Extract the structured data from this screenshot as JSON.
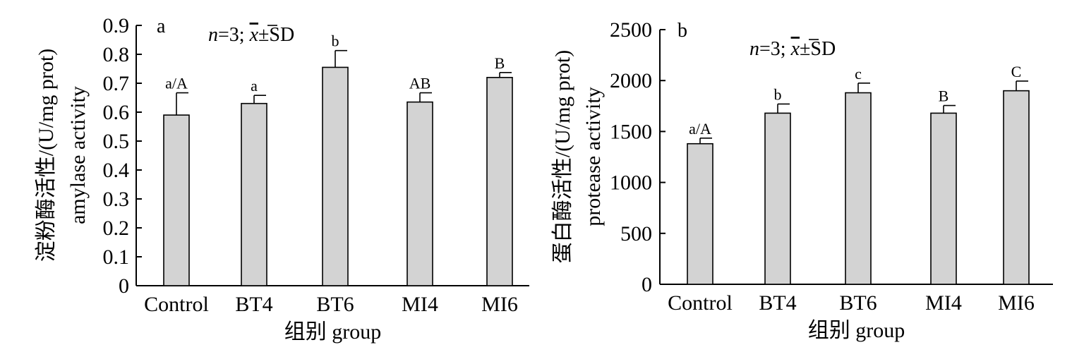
{
  "chart_data": [
    {
      "type": "bar",
      "panel_label": "a",
      "annotation": {
        "n_symbol": "n",
        "n_text": "=3; ",
        "mean_symbol": "x",
        "sd_text": "±SD"
      },
      "ylabel_lines": [
        "淀粉酶活性/(U/mg prot)",
        "amylase activity"
      ],
      "xlabel": "组别 group",
      "ylim": [
        0,
        0.9
      ],
      "yticks": [
        {
          "value": 0,
          "label": "0"
        },
        {
          "value": 0.1,
          "label": "0.1"
        },
        {
          "value": 0.2,
          "label": "0.2"
        },
        {
          "value": 0.3,
          "label": "0.3"
        },
        {
          "value": 0.4,
          "label": "0.4"
        },
        {
          "value": 0.5,
          "label": "0.5"
        },
        {
          "value": 0.6,
          "label": "0.6"
        },
        {
          "value": 0.7,
          "label": "0.7"
        },
        {
          "value": 0.8,
          "label": "0.8"
        },
        {
          "value": 0.9,
          "label": "0.9"
        }
      ],
      "categories": [
        "Control",
        "BT4",
        "BT6",
        "MI4",
        "MI6"
      ],
      "values": [
        0.59,
        0.63,
        0.755,
        0.635,
        0.72
      ],
      "errors": [
        0.077,
        0.028,
        0.058,
        0.032,
        0.017
      ],
      "labels": [
        "a/A",
        "a",
        "b",
        "AB",
        "B"
      ],
      "bar_color": "#d3d3d3"
    },
    {
      "type": "bar",
      "panel_label": "b",
      "annotation": {
        "n_symbol": "n",
        "n_text": "=3; ",
        "mean_symbol": "x",
        "sd_text": "±SD"
      },
      "ylabel_lines": [
        "蛋白酶活性/(U/mg prot)",
        "protease activity"
      ],
      "xlabel": "组别 group",
      "ylim": [
        0,
        2500
      ],
      "yticks": [
        {
          "value": 0,
          "label": "0"
        },
        {
          "value": 500,
          "label": "500"
        },
        {
          "value": 1000,
          "label": "1000"
        },
        {
          "value": 1500,
          "label": "1500"
        },
        {
          "value": 2000,
          "label": "2000"
        },
        {
          "value": 2500,
          "label": "2500"
        }
      ],
      "categories": [
        "Control",
        "BT4",
        "BT6",
        "MI4",
        "MI6"
      ],
      "values": [
        1380,
        1680,
        1880,
        1680,
        1900
      ],
      "errors": [
        55,
        90,
        95,
        75,
        95
      ],
      "labels": [
        "a/A",
        "b",
        "c",
        "B",
        "C"
      ],
      "bar_color": "#d3d3d3"
    }
  ]
}
